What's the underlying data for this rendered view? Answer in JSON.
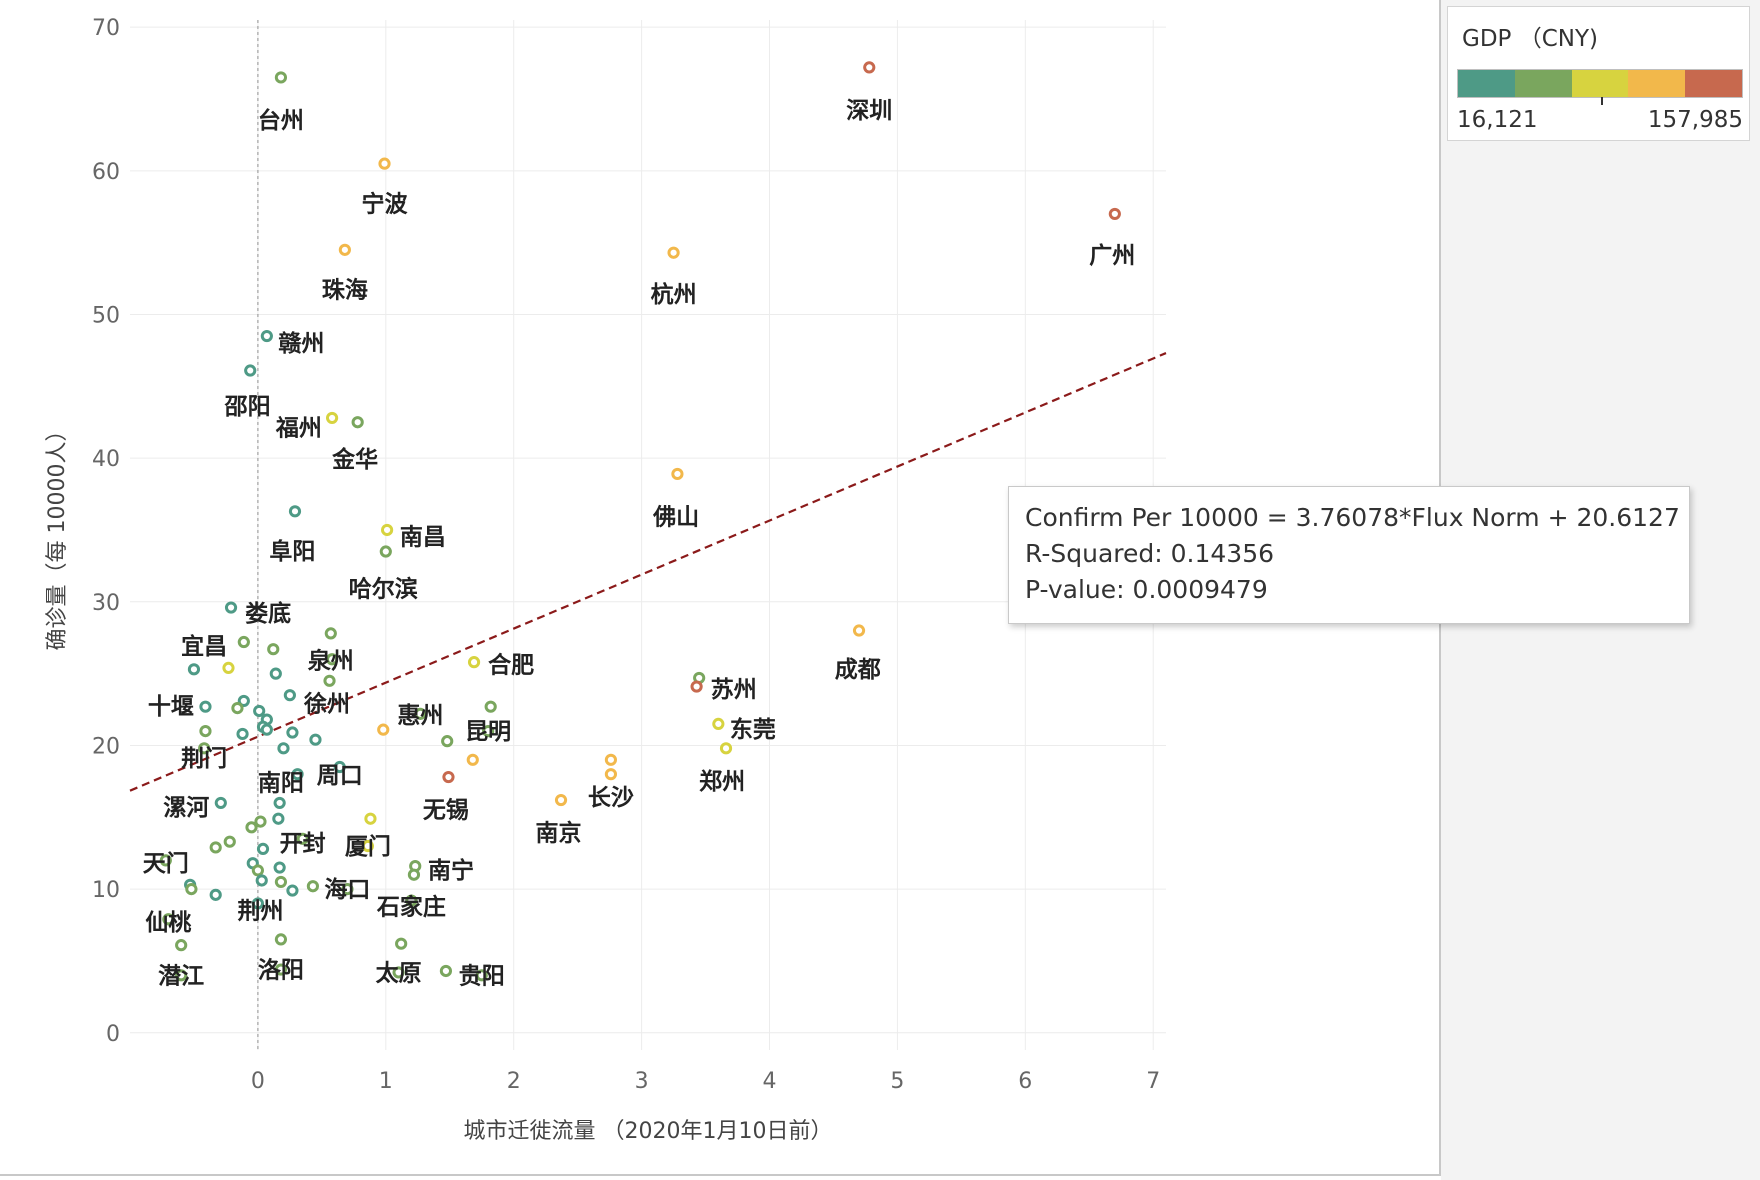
{
  "chart_data": {
    "type": "scatter",
    "xlabel": "城市迁徙流量 （2020年1月10日前）",
    "ylabel": "确诊量（每 10000人）",
    "xlim": [
      -1.0,
      7.1
    ],
    "ylim": [
      -1.2,
      70.5
    ],
    "xticks": [
      0,
      1,
      2,
      3,
      4,
      5,
      6,
      7
    ],
    "yticks": [
      0,
      10,
      20,
      30,
      40,
      50,
      60,
      70
    ],
    "grid": true,
    "reference_line_x": 0,
    "trend_line": {
      "slope": 3.76078,
      "intercept": 20.6127,
      "style": "dashed",
      "color": "#8b1a1a"
    },
    "color_scale": {
      "title": "GDP （CNY)",
      "min_label": "16,121",
      "max_label": "157,985",
      "colors": [
        "#4e9a86",
        "#7aa65e",
        "#d7d33f",
        "#f2b84b",
        "#c7694e"
      ]
    },
    "points": [
      {
        "x": 0.18,
        "y": 66.5,
        "label": "台州",
        "color": "#7aa65e",
        "lx": 0.18,
        "ly": 63.6
      },
      {
        "x": 4.78,
        "y": 67.2,
        "label": "深圳",
        "color": "#c7694e",
        "lx": 4.78,
        "ly": 64.3
      },
      {
        "x": 0.99,
        "y": 60.5,
        "label": "宁波",
        "color": "#f2b84b",
        "lx": 0.99,
        "ly": 57.8
      },
      {
        "x": 6.7,
        "y": 57.0,
        "label": "广州",
        "color": "#c7694e",
        "lx": 6.68,
        "ly": 54.2
      },
      {
        "x": 0.68,
        "y": 54.5,
        "label": "珠海",
        "color": "#f2b84b",
        "lx": 0.68,
        "ly": 51.8
      },
      {
        "x": 3.25,
        "y": 54.3,
        "label": "杭州",
        "color": "#f2b84b",
        "lx": 3.25,
        "ly": 51.5
      },
      {
        "x": 0.07,
        "y": 48.5,
        "label": "赣州",
        "color": "#4e9a86",
        "lx": 0.34,
        "ly": 48.1
      },
      {
        "x": -0.06,
        "y": 46.1,
        "label": "邵阳",
        "color": "#4e9a86",
        "lx": -0.08,
        "ly": 43.7
      },
      {
        "x": 0.58,
        "y": 42.8,
        "label": "福州",
        "color": "#d7d33f",
        "lx": 0.32,
        "ly": 42.2
      },
      {
        "x": 0.78,
        "y": 42.5,
        "label": "金华",
        "color": "#7aa65e",
        "lx": 0.76,
        "ly": 40.0
      },
      {
        "x": 3.28,
        "y": 38.9,
        "label": "佛山",
        "color": "#f2b84b",
        "lx": 3.27,
        "ly": 36.0
      },
      {
        "x": 0.29,
        "y": 36.3,
        "label": "阜阳",
        "color": "#4e9a86",
        "lx": 0.27,
        "ly": 33.6
      },
      {
        "x": 1.01,
        "y": 35.0,
        "label": "南昌",
        "color": "#d7d33f",
        "lx": 1.29,
        "ly": 34.6
      },
      {
        "x": 1.0,
        "y": 33.5,
        "label": "哈尔滨",
        "color": "#7aa65e",
        "lx": 0.98,
        "ly": 31.0
      },
      {
        "x": -0.21,
        "y": 29.6,
        "label": "娄底",
        "color": "#4e9a86",
        "lx": 0.08,
        "ly": 29.3
      },
      {
        "x": 4.7,
        "y": 28.0,
        "label": "成都",
        "color": "#f2b84b",
        "lx": 4.69,
        "ly": 25.4
      },
      {
        "x": 0.57,
        "y": 27.8,
        "label": "",
        "color": "#7aa65e"
      },
      {
        "x": -0.11,
        "y": 27.2,
        "label": "宜昌",
        "color": "#7aa65e",
        "lx": -0.42,
        "ly": 27.0
      },
      {
        "x": 0.12,
        "y": 26.7,
        "label": "",
        "color": "#7aa65e"
      },
      {
        "x": 0.58,
        "y": 26.0,
        "label": "泉州",
        "color": "#7aa65e",
        "lx": 0.57,
        "ly": 25.9,
        "nudge": 1
      },
      {
        "x": 1.69,
        "y": 25.8,
        "label": "合肥",
        "color": "#d7d33f",
        "lx": 1.98,
        "ly": 25.7
      },
      {
        "x": -0.5,
        "y": 25.3,
        "label": "",
        "color": "#4e9a86"
      },
      {
        "x": -0.23,
        "y": 25.4,
        "label": "",
        "color": "#d7d33f"
      },
      {
        "x": 0.14,
        "y": 25.0,
        "label": "",
        "color": "#4e9a86"
      },
      {
        "x": 3.45,
        "y": 24.7,
        "label": "苏州",
        "color": "#7aa65e",
        "lx": 3.72,
        "ly": 24.0
      },
      {
        "x": 0.56,
        "y": 24.5,
        "label": "",
        "color": "#7aa65e"
      },
      {
        "x": 3.43,
        "y": 24.1,
        "label": "",
        "color": "#c7694e"
      },
      {
        "x": 0.25,
        "y": 23.5,
        "label": "徐州",
        "color": "#4e9a86",
        "lx": 0.54,
        "ly": 23.0
      },
      {
        "x": -0.11,
        "y": 23.1,
        "label": "",
        "color": "#4e9a86"
      },
      {
        "x": -0.41,
        "y": 22.7,
        "label": "十堰",
        "color": "#4e9a86",
        "lx": -0.68,
        "ly": 22.8
      },
      {
        "x": 1.82,
        "y": 22.7,
        "label": "",
        "color": "#7aa65e"
      },
      {
        "x": -0.16,
        "y": 22.6,
        "label": "",
        "color": "#7aa65e"
      },
      {
        "x": 0.01,
        "y": 22.4,
        "label": "",
        "color": "#4e9a86"
      },
      {
        "x": 1.27,
        "y": 22.2,
        "label": "惠州",
        "color": "#7aa65e",
        "lx": 1.27,
        "ly": 22.2
      },
      {
        "x": 0.07,
        "y": 21.8,
        "label": "",
        "color": "#4e9a86"
      },
      {
        "x": 3.6,
        "y": 21.5,
        "label": "东莞",
        "color": "#d7d33f",
        "lx": 3.87,
        "ly": 21.2
      },
      {
        "x": 0.04,
        "y": 21.3,
        "label": "",
        "color": "#4e9a86"
      },
      {
        "x": 0.07,
        "y": 21.1,
        "label": "",
        "color": "#4e9a86"
      },
      {
        "x": -0.41,
        "y": 21.0,
        "label": "",
        "color": "#7aa65e"
      },
      {
        "x": 0.98,
        "y": 21.1,
        "label": "",
        "color": "#f2b84b"
      },
      {
        "x": 1.8,
        "y": 21.0,
        "label": "昆明",
        "color": "#7aa65e",
        "lx": 1.8,
        "ly": 21.0,
        "nudge": 1
      },
      {
        "x": 0.27,
        "y": 20.9,
        "label": "",
        "color": "#4e9a86"
      },
      {
        "x": -0.12,
        "y": 20.8,
        "label": "",
        "color": "#4e9a86"
      },
      {
        "x": 0.45,
        "y": 20.4,
        "label": "",
        "color": "#4e9a86"
      },
      {
        "x": 1.48,
        "y": 20.3,
        "label": "",
        "color": "#7aa65e"
      },
      {
        "x": 3.66,
        "y": 19.8,
        "label": "郑州",
        "color": "#d7d33f",
        "lx": 3.63,
        "ly": 17.6
      },
      {
        "x": 0.2,
        "y": 19.8,
        "label": "",
        "color": "#4e9a86"
      },
      {
        "x": -0.42,
        "y": 19.8,
        "label": "荆门",
        "color": "#7aa65e",
        "lx": -0.42,
        "ly": 19.2
      },
      {
        "x": 0.31,
        "y": 18.0,
        "label": "南阳",
        "color": "#4e9a86",
        "lx": 0.18,
        "ly": 17.5
      },
      {
        "x": 0.64,
        "y": 18.5,
        "label": "周口",
        "color": "#4e9a86",
        "lx": 0.64,
        "ly": 18.0
      },
      {
        "x": 1.68,
        "y": 19.0,
        "label": "",
        "color": "#f2b84b"
      },
      {
        "x": 2.76,
        "y": 19.0,
        "label": "",
        "color": "#f2b84b"
      },
      {
        "x": 1.49,
        "y": 17.8,
        "label": "无锡",
        "color": "#c7694e",
        "lx": 1.47,
        "ly": 15.6
      },
      {
        "x": 2.76,
        "y": 18.0,
        "label": "长沙",
        "color": "#f2b84b",
        "lx": 2.76,
        "ly": 16.4,
        "nudge": 1
      },
      {
        "x": 2.37,
        "y": 16.2,
        "label": "南京",
        "color": "#f2b84b",
        "lx": 2.35,
        "ly": 14.0
      },
      {
        "x": -0.29,
        "y": 16.0,
        "label": "漯河",
        "color": "#4e9a86",
        "lx": -0.56,
        "ly": 15.8
      },
      {
        "x": 0.17,
        "y": 16.0,
        "label": "",
        "color": "#4e9a86"
      },
      {
        "x": 0.88,
        "y": 14.9,
        "label": "",
        "color": "#d7d33f"
      },
      {
        "x": 0.16,
        "y": 14.9,
        "label": "",
        "color": "#4e9a86"
      },
      {
        "x": 0.02,
        "y": 14.7,
        "label": "",
        "color": "#7aa65e"
      },
      {
        "x": -0.05,
        "y": 14.3,
        "label": "",
        "color": "#7aa65e"
      },
      {
        "x": 0.35,
        "y": 13.5,
        "label": "开封",
        "color": "#7aa65e",
        "lx": 0.35,
        "ly": 13.2,
        "nudge": 1
      },
      {
        "x": 0.86,
        "y": 13.0,
        "label": "厦门",
        "color": "#d7d33f",
        "lx": 0.86,
        "ly": 13.0,
        "nudge": 1
      },
      {
        "x": -0.22,
        "y": 13.3,
        "label": "",
        "color": "#7aa65e"
      },
      {
        "x": -0.33,
        "y": 12.9,
        "label": "",
        "color": "#7aa65e"
      },
      {
        "x": 0.04,
        "y": 12.8,
        "label": "",
        "color": "#4e9a86"
      },
      {
        "x": -0.72,
        "y": 12.0,
        "label": "天门",
        "color": "#7aa65e",
        "lx": -0.72,
        "ly": 11.8,
        "nudge": 1
      },
      {
        "x": -0.04,
        "y": 11.8,
        "label": "",
        "color": "#4e9a86"
      },
      {
        "x": 1.23,
        "y": 11.6,
        "label": "南宁",
        "color": "#7aa65e",
        "lx": 1.51,
        "ly": 11.4
      },
      {
        "x": 0.17,
        "y": 11.5,
        "label": "",
        "color": "#4e9a86"
      },
      {
        "x": 0.0,
        "y": 11.3,
        "label": "",
        "color": "#7aa65e"
      },
      {
        "x": 1.22,
        "y": 11.0,
        "label": "",
        "color": "#7aa65e"
      },
      {
        "x": 0.03,
        "y": 10.6,
        "label": "",
        "color": "#4e9a86"
      },
      {
        "x": 0.18,
        "y": 10.5,
        "label": "",
        "color": "#7aa65e"
      },
      {
        "x": -0.53,
        "y": 10.3,
        "label": "",
        "color": "#4e9a86"
      },
      {
        "x": 0.43,
        "y": 10.2,
        "label": "",
        "color": "#7aa65e"
      },
      {
        "x": 0.7,
        "y": 10.0,
        "label": "海口",
        "color": "#7aa65e",
        "lx": 0.7,
        "ly": 10.0,
        "nudge": 1
      },
      {
        "x": -0.52,
        "y": 10.0,
        "label": "",
        "color": "#7aa65e"
      },
      {
        "x": 0.27,
        "y": 9.9,
        "label": "",
        "color": "#4e9a86"
      },
      {
        "x": 1.2,
        "y": 9.2,
        "label": "石家庄",
        "color": "#7aa65e",
        "lx": 1.2,
        "ly": 8.8,
        "nudge": 1
      },
      {
        "x": -0.33,
        "y": 9.6,
        "label": "",
        "color": "#4e9a86"
      },
      {
        "x": 0.0,
        "y": 9.0,
        "label": "荆州",
        "color": "#4e9a86",
        "lx": 0.02,
        "ly": 8.5,
        "nudge": 1
      },
      {
        "x": -0.7,
        "y": 7.9,
        "label": "仙桃",
        "color": "#7aa65e",
        "lx": -0.7,
        "ly": 7.7,
        "nudge": 1
      },
      {
        "x": 0.18,
        "y": 6.5,
        "label": "",
        "color": "#7aa65e"
      },
      {
        "x": -0.6,
        "y": 6.1,
        "label": "",
        "color": "#7aa65e"
      },
      {
        "x": 1.12,
        "y": 6.2,
        "label": "",
        "color": "#7aa65e"
      },
      {
        "x": 1.47,
        "y": 4.3,
        "label": "",
        "color": "#7aa65e"
      },
      {
        "x": 0.18,
        "y": 4.4,
        "label": "洛阳",
        "color": "#7aa65e",
        "lx": 0.18,
        "ly": 4.4,
        "nudge": 1
      },
      {
        "x": -0.6,
        "y": 4.0,
        "label": "潜江",
        "color": "#7aa65e",
        "lx": -0.6,
        "ly": 4.0,
        "nudge": 1
      },
      {
        "x": 1.1,
        "y": 4.2,
        "label": "太原",
        "color": "#7aa65e",
        "lx": 1.1,
        "ly": 4.2,
        "nudge": 1
      },
      {
        "x": 1.75,
        "y": 4.0,
        "label": "贵阳",
        "color": "#7aa65e",
        "lx": 1.75,
        "ly": 4.0,
        "nudge": 1
      }
    ]
  },
  "tooltip": {
    "line1": "Confirm Per 10000 = 3.76078*Flux Norm + 20.6127",
    "line2": "R-Squared: 0.14356",
    "line3": "P-value: 0.0009479"
  }
}
